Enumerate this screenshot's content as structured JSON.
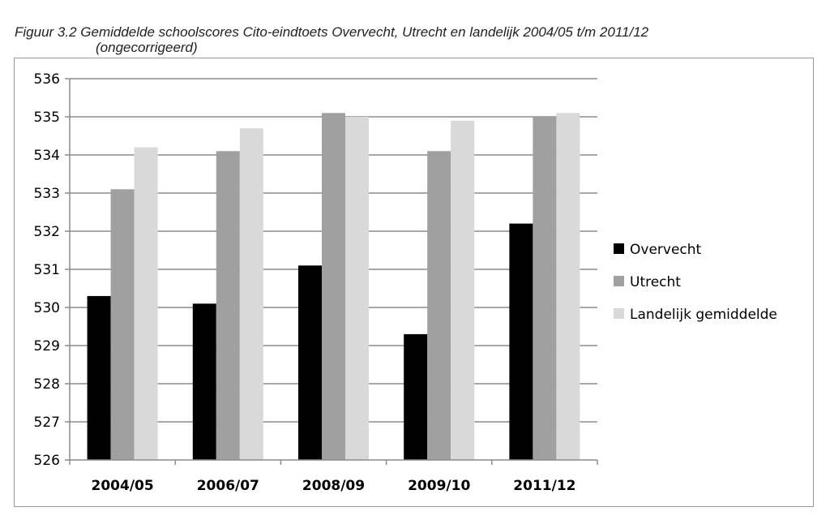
{
  "caption": {
    "line1": "Figuur 3.2 Gemiddelde schoolscores Cito-eindtoets Overvecht, Utrecht en landelijk 2004/05 t/m 2011/12",
    "line2": "(ongecorrigeerd)"
  },
  "chart_data": {
    "type": "bar",
    "categories": [
      "2004/05",
      "2006/07",
      "2008/09",
      "2009/10",
      "2011/12"
    ],
    "series": [
      {
        "name": "Overvecht",
        "color": "#000000",
        "values": [
          530.3,
          530.1,
          531.1,
          529.3,
          532.2
        ]
      },
      {
        "name": "Utrecht",
        "color": "#a0a0a0",
        "values": [
          533.1,
          534.1,
          535.1,
          534.1,
          535.0
        ]
      },
      {
        "name": "Landelijk gemiddelde",
        "color": "#d9d9d9",
        "values": [
          534.2,
          534.7,
          535.0,
          534.9,
          535.1
        ]
      }
    ],
    "ylim": [
      526,
      536
    ],
    "yticks": [
      526,
      527,
      528,
      529,
      530,
      531,
      532,
      533,
      534,
      535,
      536
    ],
    "grid": true,
    "legend_position": "right"
  }
}
